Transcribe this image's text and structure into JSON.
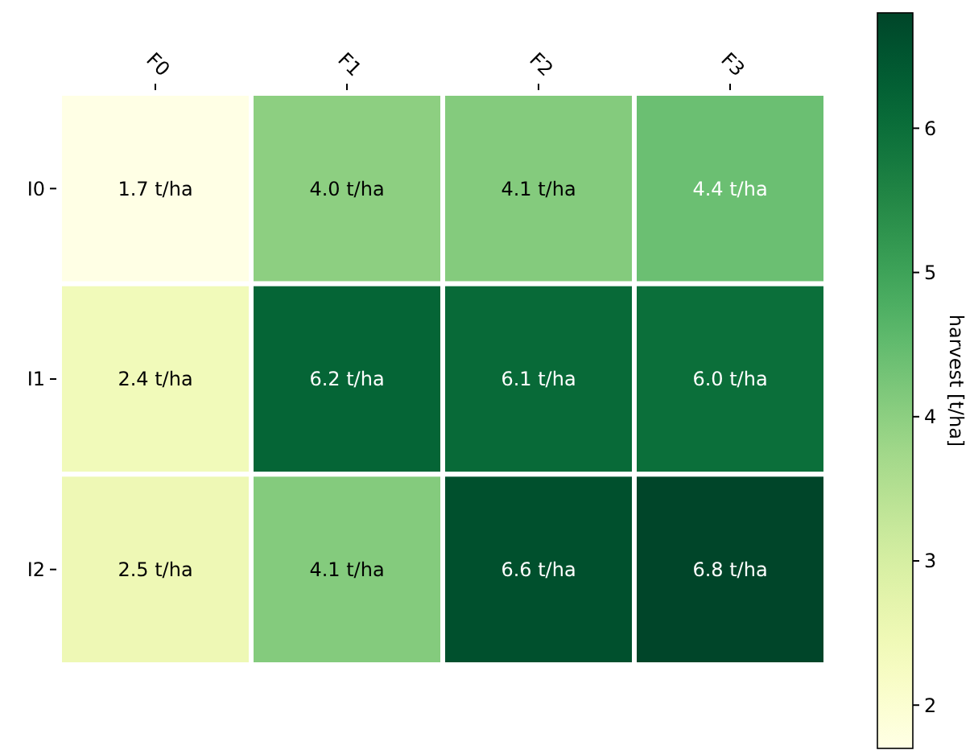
{
  "chart_data": {
    "type": "heatmap",
    "categories": [
      "F0",
      "F1",
      "F2",
      "F3"
    ],
    "y_categories": [
      "I0",
      "I1",
      "I2"
    ],
    "cells": [
      [
        1.7,
        4.0,
        4.1,
        4.4
      ],
      [
        2.4,
        6.2,
        6.1,
        6.0
      ],
      [
        2.5,
        4.1,
        6.6,
        6.8
      ]
    ],
    "cell_labels": [
      [
        "1.7 t/ha",
        "4.0 t/ha",
        "4.1 t/ha",
        "4.4 t/ha"
      ],
      [
        "2.4 t/ha",
        "6.2 t/ha",
        "6.1 t/ha",
        "6.0 t/ha"
      ],
      [
        "2.5 t/ha",
        "4.1 t/ha",
        "6.6 t/ha",
        "6.8 t/ha"
      ]
    ],
    "clabel": "harvest [t/ha]",
    "clim": [
      1.7,
      6.8
    ],
    "cticks": [
      2,
      3,
      4,
      5,
      6
    ]
  }
}
